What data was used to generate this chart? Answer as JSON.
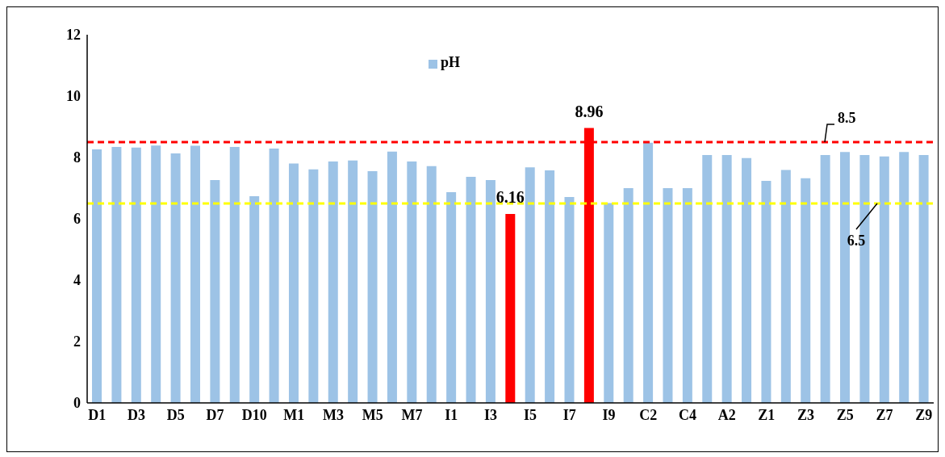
{
  "chart_data": {
    "type": "bar",
    "categories": [
      "D1",
      null,
      "D3",
      null,
      "D5",
      null,
      "D7",
      null,
      "D10",
      null,
      "M1",
      null,
      "M3",
      null,
      "M5",
      null,
      "M7",
      null,
      "I1",
      null,
      "I3",
      null,
      "I5",
      null,
      "I7",
      null,
      "I9",
      null,
      "C2",
      null,
      "C4",
      null,
      "A2",
      null,
      "Z1",
      null,
      "Z3",
      null,
      "Z5",
      null,
      "Z7",
      null,
      "Z9"
    ],
    "series": [
      {
        "name": "pH",
        "color": "#9dc3e6",
        "colors": [
          "#9dc3e6",
          "#9dc3e6",
          "#9dc3e6",
          "#9dc3e6",
          "#9dc3e6",
          "#9dc3e6",
          "#9dc3e6",
          "#9dc3e6",
          "#9dc3e6",
          "#9dc3e6",
          "#9dc3e6",
          "#9dc3e6",
          "#9dc3e6",
          "#9dc3e6",
          "#9dc3e6",
          "#9dc3e6",
          "#9dc3e6",
          "#9dc3e6",
          "#9dc3e6",
          "#9dc3e6",
          "#9dc3e6",
          "#ff0000",
          "#9dc3e6",
          "#9dc3e6",
          "#9dc3e6",
          "#ff0000",
          "#9dc3e6",
          "#9dc3e6",
          "#9dc3e6",
          "#9dc3e6",
          "#9dc3e6",
          "#9dc3e6",
          "#9dc3e6",
          "#9dc3e6",
          "#9dc3e6",
          "#9dc3e6",
          "#9dc3e6",
          "#9dc3e6",
          "#9dc3e6",
          "#9dc3e6",
          "#9dc3e6",
          "#9dc3e6",
          "#9dc3e6"
        ],
        "values": [
          8.26,
          8.34,
          8.32,
          8.39,
          8.13,
          8.38,
          7.26,
          8.34,
          6.74,
          8.29,
          7.8,
          7.61,
          7.87,
          7.9,
          7.55,
          8.19,
          7.87,
          7.72,
          6.87,
          7.37,
          7.26,
          6.16,
          7.68,
          7.58,
          6.71,
          8.96,
          6.51,
          7.0,
          8.48,
          7.0,
          7.0,
          8.08,
          8.08,
          7.98,
          7.24,
          7.59,
          7.32,
          8.08,
          8.18,
          8.08,
          8.03,
          8.18,
          8.08
        ],
        "value_labels": [
          null,
          null,
          null,
          null,
          null,
          null,
          null,
          null,
          null,
          null,
          null,
          null,
          null,
          null,
          null,
          null,
          null,
          null,
          null,
          null,
          null,
          "6.16",
          null,
          null,
          null,
          "8.96",
          null,
          null,
          null,
          null,
          null,
          null,
          null,
          null,
          null,
          null,
          null,
          null,
          null,
          null,
          null,
          null,
          null
        ]
      }
    ],
    "ylim": [
      0,
      12
    ],
    "yticks": [
      0,
      2,
      4,
      6,
      8,
      10,
      12
    ],
    "grid": false,
    "legend": "top",
    "ref_lines": [
      {
        "axis": "y",
        "value": 8.5,
        "label": "8.5",
        "color": "#ff0000",
        "line_style": "dashed"
      },
      {
        "axis": "y",
        "value": 6.5,
        "label": "6.5",
        "color": "#ffff00",
        "line_style": "dashed"
      }
    ]
  }
}
